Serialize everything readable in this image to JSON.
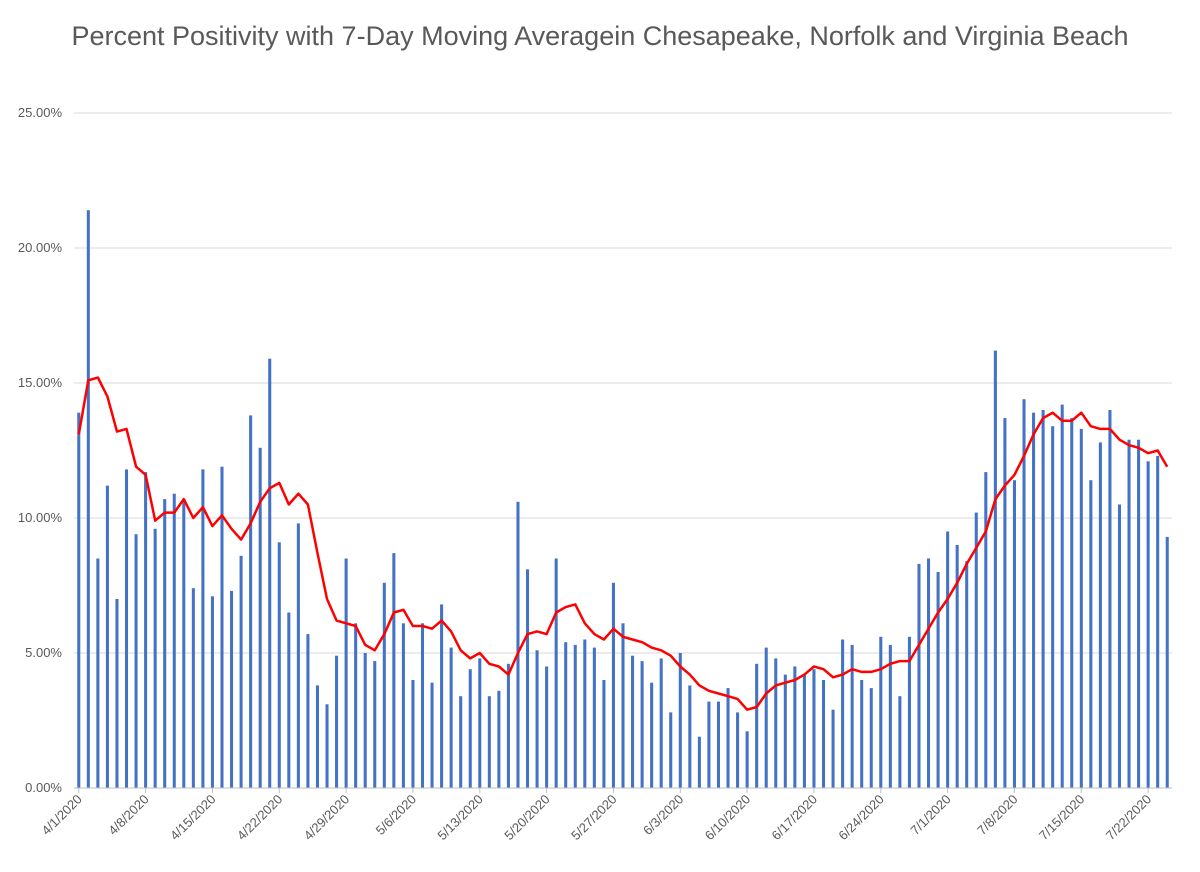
{
  "chart_data": {
    "type": "bar",
    "title": "Percent Positivity with 7-Day Moving Averagein Chesapeake, Norfolk and Virginia Beach",
    "xlabel": "",
    "ylabel": "",
    "ylim": [
      0,
      25
    ],
    "y_tick_labels": [
      "0.00%",
      "5.00%",
      "10.00%",
      "15.00%",
      "20.00%",
      "25.00%"
    ],
    "x_tick_labels": [
      "4/1/2020",
      "4/8/2020",
      "4/15/2020",
      "4/22/2020",
      "4/29/2020",
      "5/6/2020",
      "5/13/2020",
      "5/20/2020",
      "5/27/2020",
      "6/3/2020",
      "6/10/2020",
      "6/17/2020",
      "6/24/2020",
      "7/1/2020",
      "7/8/2020",
      "7/15/2020",
      "7/22/2020"
    ],
    "grid": true,
    "legend": "none",
    "start_date": "4/1/2020",
    "colors": {
      "bars": "#4472C4",
      "average": "#FF0000",
      "grid": "#D9D9D9"
    },
    "series": [
      {
        "kind": "bar",
        "values": [
          13.9,
          21.4,
          8.5,
          11.2,
          7.0,
          11.8,
          9.4,
          11.7,
          9.6,
          10.7,
          10.9,
          10.6,
          7.4,
          11.8,
          7.1,
          11.9,
          7.3,
          8.6,
          13.8,
          12.6,
          15.9,
          9.1,
          6.5,
          9.8,
          5.7,
          3.8,
          3.1,
          4.9,
          8.5,
          6.1,
          5.0,
          4.7,
          7.6,
          8.7,
          6.1,
          4.0,
          6.1,
          3.9,
          6.8,
          5.2,
          3.4,
          4.4,
          4.8,
          3.4,
          3.6,
          4.6,
          10.6,
          8.1,
          5.1,
          4.5,
          8.5,
          5.4,
          5.3,
          5.5,
          5.2,
          4.0,
          7.6,
          6.1,
          4.9,
          4.7,
          3.9,
          4.8,
          2.8,
          5.0,
          3.8,
          1.9,
          3.2,
          3.2,
          3.7,
          2.8,
          2.1,
          4.6,
          5.2,
          4.8,
          4.2,
          4.5,
          4.2,
          4.4,
          4.0,
          2.9,
          5.5,
          5.3,
          4.0,
          3.7,
          5.6,
          5.3,
          3.4,
          5.6,
          8.3,
          8.5,
          8.0,
          9.5,
          9.0,
          8.4,
          10.2,
          11.7,
          16.2,
          13.7,
          11.4,
          14.4,
          13.9,
          14.0,
          13.4,
          14.2,
          13.7,
          13.3,
          11.4,
          12.8,
          14.0,
          10.5,
          12.9,
          12.9,
          12.1,
          12.3,
          9.3
        ]
      },
      {
        "kind": "line",
        "values": [
          13.1,
          15.1,
          15.2,
          14.5,
          13.2,
          13.3,
          11.9,
          11.6,
          9.9,
          10.2,
          10.2,
          10.7,
          10.0,
          10.4,
          9.7,
          10.1,
          9.6,
          9.2,
          9.8,
          10.6,
          11.1,
          11.3,
          10.5,
          10.9,
          10.5,
          8.7,
          7.0,
          6.2,
          6.1,
          6.0,
          5.3,
          5.1,
          5.7,
          6.5,
          6.6,
          6.0,
          6.0,
          5.9,
          6.2,
          5.8,
          5.1,
          4.8,
          5.0,
          4.6,
          4.5,
          4.2,
          5.0,
          5.7,
          5.8,
          5.7,
          6.5,
          6.7,
          6.8,
          6.1,
          5.7,
          5.5,
          5.9,
          5.6,
          5.5,
          5.4,
          5.2,
          5.1,
          4.9,
          4.5,
          4.2,
          3.8,
          3.6,
          3.5,
          3.4,
          3.3,
          2.9,
          3.0,
          3.5,
          3.8,
          3.9,
          4.0,
          4.2,
          4.5,
          4.4,
          4.1,
          4.2,
          4.4,
          4.3,
          4.3,
          4.4,
          4.6,
          4.7,
          4.7,
          5.3,
          5.9,
          6.5,
          7.0,
          7.6,
          8.3,
          8.9,
          9.5,
          10.7,
          11.2,
          11.6,
          12.3,
          13.1,
          13.7,
          13.9,
          13.6,
          13.6,
          13.9,
          13.4,
          13.3,
          13.3,
          12.9,
          12.7,
          12.6,
          12.4,
          12.5,
          11.9
        ]
      }
    ]
  }
}
